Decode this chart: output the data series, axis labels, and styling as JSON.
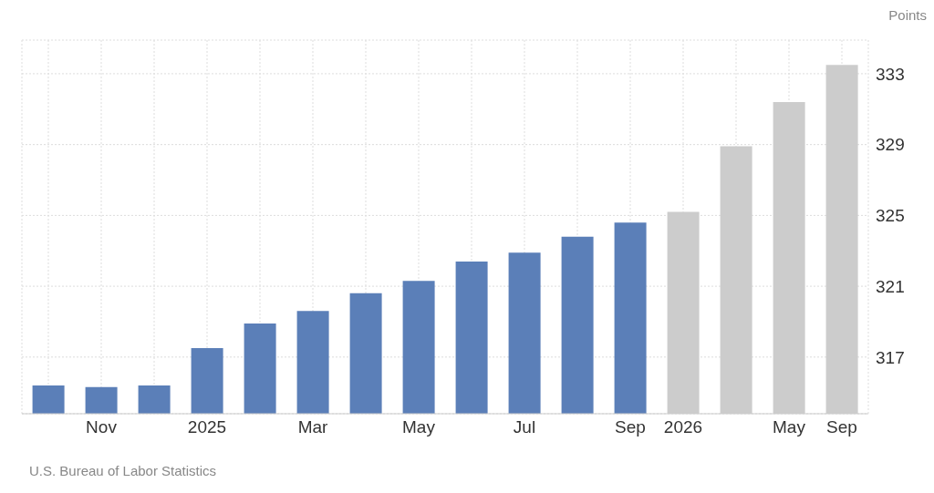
{
  "chart_data": {
    "type": "bar",
    "categories": [
      null,
      "Nov",
      null,
      "2025",
      null,
      "Mar",
      null,
      "May",
      null,
      "Jul",
      null,
      "Sep",
      "2026",
      null,
      "May",
      "Sep"
    ],
    "values": [
      315.4,
      315.3,
      315.4,
      317.5,
      318.9,
      319.6,
      320.6,
      321.3,
      322.4,
      322.9,
      323.8,
      324.6,
      325.2,
      328.9,
      331.4,
      333.5
    ],
    "colors": [
      "#5b7fb8",
      "#5b7fb8",
      "#5b7fb8",
      "#5b7fb8",
      "#5b7fb8",
      "#5b7fb8",
      "#5b7fb8",
      "#5b7fb8",
      "#5b7fb8",
      "#5b7fb8",
      "#5b7fb8",
      "#5b7fb8",
      "#cccccc",
      "#cccccc",
      "#cccccc",
      "#cccccc"
    ],
    "ylim": [
      313.8,
      334.9
    ],
    "yticks": [
      317,
      321,
      325,
      329,
      333
    ],
    "ylabel": "Points",
    "grid": true,
    "annotations": [
      "U.S. Bureau of Labor Statistics"
    ]
  }
}
